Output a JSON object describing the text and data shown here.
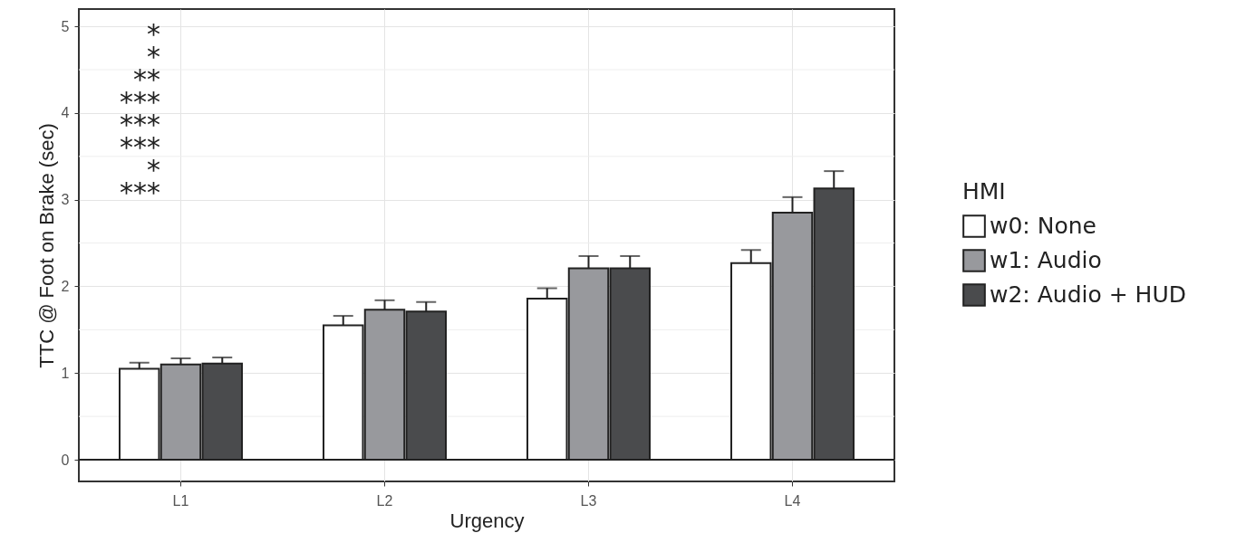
{
  "chart_data": {
    "type": "bar",
    "xlabel": "Urgency",
    "ylabel": "TTC @ Foot on Brake (sec)",
    "legend_title": "HMI",
    "categories": [
      "L1",
      "L2",
      "L3",
      "L4"
    ],
    "series": [
      {
        "name": "w0: None",
        "color": "#ffffff",
        "values": [
          1.05,
          1.55,
          1.86,
          2.27
        ],
        "errors": [
          [
            1.05,
            1.12
          ],
          [
            1.55,
            1.66
          ],
          [
            1.86,
            1.98
          ],
          [
            2.27,
            2.42
          ]
        ]
      },
      {
        "name": "w1: Audio",
        "color": "#98999d",
        "values": [
          1.1,
          1.73,
          2.21,
          2.85
        ],
        "errors": [
          [
            1.1,
            1.17
          ],
          [
            1.73,
            1.84
          ],
          [
            2.21,
            2.35
          ],
          [
            2.85,
            3.03
          ]
        ]
      },
      {
        "name": "w2: Audio + HUD",
        "color": "#4a4b4d",
        "values": [
          1.11,
          1.71,
          2.21,
          3.13
        ],
        "errors": [
          [
            1.11,
            1.18
          ],
          [
            1.71,
            1.82
          ],
          [
            2.21,
            2.35
          ],
          [
            3.13,
            3.33
          ]
        ]
      }
    ],
    "ylim": [
      -0.25,
      5.2
    ],
    "yticks": [
      {
        "value": 0,
        "label": "0"
      },
      {
        "value": 1,
        "label": "1"
      },
      {
        "value": 2,
        "label": "2"
      },
      {
        "value": 3,
        "label": "3"
      },
      {
        "value": 4,
        "label": "4"
      },
      {
        "value": 5,
        "label": "5"
      }
    ],
    "grid": true,
    "legend": "right",
    "ref_lines": [
      {
        "axis": "y",
        "value": 0,
        "color": "#222222"
      }
    ],
    "annotations": [
      "*",
      "*",
      "**",
      "***",
      "***",
      "***",
      "*",
      "***"
    ]
  }
}
